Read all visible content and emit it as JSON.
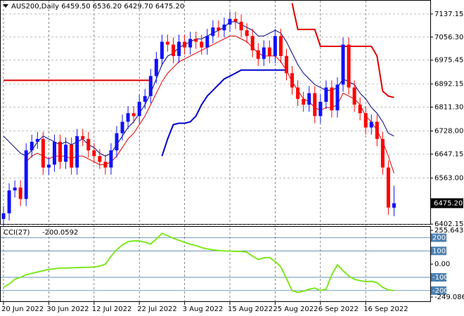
{
  "chart_data": [
    {
      "type": "candlestick",
      "title": "AUS200,Daily  6459.50 6536.20 6429.70 6475.20",
      "categories": [
        "20 Jun 2022",
        null,
        null,
        null,
        null,
        null,
        null,
        null,
        "30 Jun 2022",
        null,
        null,
        null,
        null,
        null,
        null,
        null,
        "12 Jul 2022",
        null,
        null,
        null,
        null,
        null,
        null,
        null,
        "22 Jul 2022",
        null,
        null,
        null,
        null,
        null,
        null,
        null,
        "3 Aug 2022",
        null,
        null,
        null,
        null,
        null,
        null,
        null,
        "15 Aug 2022",
        null,
        null,
        null,
        null,
        null,
        null,
        null,
        "25 Aug 2022",
        null,
        null,
        null,
        null,
        null,
        null,
        null,
        "6 Sep 2022",
        null,
        null,
        null,
        null,
        null,
        null,
        null,
        "16 Sep 2022",
        null,
        null,
        null,
        null,
        null
      ],
      "open": [
        6420,
        6440,
        6520,
        6530,
        6490,
        6660,
        6690,
        6700,
        6600,
        6610,
        6690,
        6620,
        6680,
        6600,
        6710,
        6700,
        6660,
        6640,
        6620,
        6600,
        6660,
        6720,
        6760,
        6790,
        6780,
        6830,
        6850,
        6920,
        6980,
        7040,
        7030,
        6990,
        7040,
        7020,
        7050,
        7040,
        7020,
        7060,
        7090,
        7080,
        7100,
        7120,
        7110,
        7080,
        7060,
        7010,
        6980,
        7020,
        6990,
        7060,
        6990,
        6930,
        6880,
        6840,
        6820,
        6860,
        6780,
        6830,
        6880,
        6800,
        6890,
        7030,
        6880,
        6820,
        6790,
        6740,
        6760,
        6700,
        6600,
        6459.5
      ],
      "high": [
        6465,
        6545,
        6555,
        6555,
        6685,
        6715,
        6725,
        6725,
        6635,
        6715,
        6715,
        6705,
        6705,
        6735,
        6735,
        6725,
        6685,
        6665,
        6645,
        6685,
        6745,
        6785,
        6815,
        6815,
        6855,
        6875,
        6945,
        7005,
        7065,
        7065,
        7055,
        7065,
        7065,
        7075,
        7075,
        7065,
        7085,
        7115,
        7115,
        7125,
        7145,
        7145,
        7135,
        7105,
        7085,
        7035,
        7045,
        7045,
        7085,
        7085,
        7015,
        6955,
        6905,
        6865,
        6885,
        6885,
        6855,
        6905,
        6905,
        6915,
        7055,
        7055,
        6905,
        6845,
        6815,
        6785,
        6785,
        6725,
        6625,
        6536.2
      ],
      "low": [
        6395,
        6415,
        6495,
        6465,
        6465,
        6635,
        6665,
        6575,
        6575,
        6585,
        6595,
        6595,
        6575,
        6575,
        6675,
        6635,
        6615,
        6595,
        6575,
        6575,
        6635,
        6695,
        6735,
        6755,
        6755,
        6805,
        6825,
        6895,
        6955,
        7005,
        6965,
        6965,
        6995,
        6995,
        7015,
        6995,
        6995,
        7035,
        7055,
        7055,
        7075,
        7085,
        7055,
        7035,
        6985,
        6955,
        6955,
        6965,
        6965,
        6965,
        6905,
        6855,
        6815,
        6795,
        6795,
        6755,
        6755,
        6805,
        6775,
        6775,
        6865,
        6855,
        6795,
        6765,
        6715,
        6715,
        6675,
        6575,
        6435,
        6429.7
      ],
      "close": [
        6440,
        6520,
        6530,
        6490,
        6660,
        6690,
        6700,
        6600,
        6610,
        6690,
        6620,
        6680,
        6600,
        6710,
        6700,
        6660,
        6640,
        6620,
        6600,
        6660,
        6720,
        6760,
        6790,
        6780,
        6830,
        6850,
        6920,
        6980,
        7040,
        7030,
        6990,
        7040,
        7020,
        7050,
        7040,
        7020,
        7060,
        7090,
        7080,
        7100,
        7120,
        7110,
        7080,
        7060,
        7010,
        6980,
        7020,
        6990,
        7060,
        6990,
        6930,
        6880,
        6840,
        6820,
        6860,
        6780,
        6830,
        6880,
        6800,
        6890,
        7030,
        6880,
        6820,
        6790,
        6740,
        6760,
        6700,
        6600,
        6460,
        6475.2
      ],
      "last_label": "6475.20",
      "up_color": "#1010ff",
      "down_color": "#ff0000",
      "series": [
        {
          "color": "#000080",
          "width": 1,
          "values": [
            6710,
            6690,
            6670,
            6650,
            6640,
            6660,
            6690,
            6710,
            6700,
            6690,
            6680,
            6690,
            6680,
            6690,
            6700,
            6680,
            6670,
            6650,
            6640,
            6650,
            6680,
            6710,
            6740,
            6760,
            6790,
            6820,
            6860,
            6910,
            6960,
            6990,
            7000,
            7020,
            7030,
            7040,
            7050,
            7050,
            7060,
            7070,
            7080,
            7090,
            7110,
            7110,
            7100,
            7090,
            7080,
            7060,
            7060,
            7070,
            7080,
            7070,
            7040,
            7000,
            6960,
            6930,
            6910,
            6890,
            6880,
            6870,
            6870,
            6880,
            6910,
            6900,
            6890,
            6860,
            6840,
            6810,
            6790,
            6760,
            6720,
            6710
          ]
        },
        {
          "color": "#e00000",
          "width": 1,
          "values": [
            null,
            null,
            null,
            null,
            6620,
            6640,
            6650,
            6640,
            6630,
            6640,
            6640,
            6640,
            6630,
            6640,
            6640,
            6630,
            6620,
            6610,
            6610,
            6620,
            6640,
            6670,
            6700,
            6720,
            6750,
            6780,
            6820,
            6860,
            6900,
            6930,
            6950,
            6970,
            6980,
            6990,
            7000,
            7010,
            7020,
            7030,
            7040,
            7050,
            7060,
            7060,
            7050,
            7040,
            7020,
            7000,
            6990,
            6990,
            6990,
            6970,
            6940,
            6900,
            6870,
            6840,
            6830,
            6810,
            6800,
            6810,
            6810,
            6820,
            6860,
            6850,
            6840,
            6820,
            6780,
            6760,
            6730,
            6690,
            6640,
            6580
          ]
        },
        {
          "color": "#e00000",
          "width": 2,
          "values": [
            6905,
            6905,
            6905,
            6905,
            6905,
            6905,
            6905,
            6905,
            6905,
            6905,
            6905,
            6905,
            6905,
            6905,
            6905,
            6905,
            6905,
            6905,
            6905,
            6905,
            6905,
            6905,
            6905,
            6905,
            6905,
            6905,
            6905,
            null,
            null,
            null,
            null,
            null,
            null,
            null,
            null,
            null,
            null,
            null,
            null,
            null,
            null,
            null,
            null,
            null,
            null,
            null,
            null,
            null,
            null,
            null,
            null,
            7175,
            7083,
            7083,
            7083,
            7083,
            7024,
            7024,
            7024,
            7024,
            7024,
            7024,
            7024,
            7024,
            7024,
            7024,
            6990,
            6867,
            6850,
            6845
          ]
        },
        {
          "color": "#0000cc",
          "width": 2,
          "values": [
            null,
            null,
            null,
            null,
            null,
            null,
            null,
            null,
            null,
            null,
            null,
            null,
            null,
            null,
            null,
            null,
            null,
            null,
            null,
            null,
            null,
            null,
            null,
            null,
            null,
            null,
            null,
            null,
            6640,
            6700,
            6750,
            6755,
            6755,
            6760,
            6780,
            6820,
            6850,
            6870,
            6890,
            6910,
            6920,
            6930,
            6941,
            6941,
            6941,
            6941,
            6941,
            6941,
            6941,
            6941,
            6941,
            null,
            null,
            null,
            null,
            null,
            null,
            null,
            null,
            null,
            null,
            null,
            null,
            null,
            null,
            null,
            null,
            null,
            null,
            null
          ]
        }
      ],
      "ylim": [
        6400,
        7186
      ],
      "yticks": [
        7137.15,
        {
          "value": 7056.3,
          "label": "7056.30"
        },
        6975.45,
        6892.15,
        {
          "value": 6811.3,
          "label": "6811.30"
        },
        {
          "value": 6728,
          "label": "6728.00"
        },
        6647.15,
        {
          "value": 6563,
          "label": "6563.00"
        },
        6402.15
      ],
      "grid": true
    },
    {
      "type": "line",
      "title": "CCI(27)",
      "series": [
        {
          "color": "#7ee81f",
          "width": 2,
          "values": [
            -175,
            -150,
            -115,
            -100,
            -80,
            -70,
            -60,
            -50,
            -40,
            -35,
            -30,
            -30,
            -28,
            -26,
            -25,
            -24,
            -22,
            -15,
            0,
            60,
            110,
            145,
            170,
            175,
            176,
            165,
            152,
            190,
            233,
            215,
            195,
            180,
            165,
            150,
            140,
            125,
            115,
            108,
            102,
            100,
            98,
            97,
            96,
            90,
            60,
            35,
            48,
            50,
            20,
            -20,
            -110,
            -200,
            -214,
            -205,
            -190,
            -181,
            -200,
            -190,
            -80,
            -5,
            -50,
            -90,
            -115,
            -125,
            -133,
            -130,
            -140,
            -176,
            -195,
            -200.0592
          ]
        }
      ],
      "levels": [
        200,
        100,
        -100,
        -200
      ],
      "level_color": "#4a7fb0",
      "ylim": [
        -249.086,
        255.6437
      ],
      "yticks": [
        255.6437,
        {
          "value": 0,
          "label": "0.00"
        },
        -249.086
      ]
    }
  ]
}
